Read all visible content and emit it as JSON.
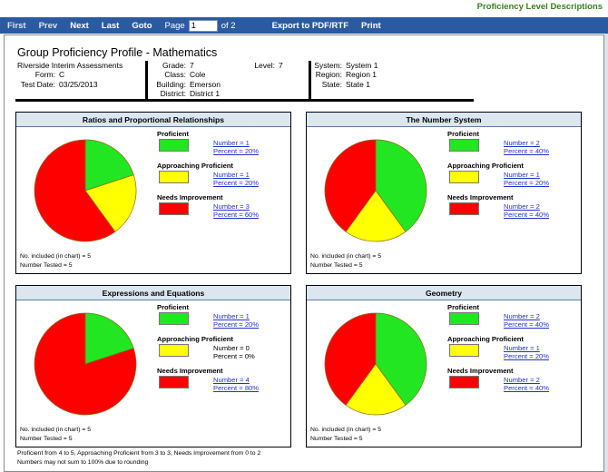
{
  "header_link": "Proficiency Level Descriptions",
  "toolbar": {
    "first": "First",
    "prev": "Prev",
    "next": "Next",
    "last": "Last",
    "goto": "Goto",
    "page_label": "Page",
    "page_value": "1",
    "of": "of 2",
    "export": "Export to PDF/RTF",
    "print": "Print"
  },
  "report": {
    "title": "Group Proficiency Profile - Mathematics",
    "assessment": "Riverside Interim Assessments",
    "form_label": "Form:",
    "form": "C",
    "test_date_label": "Test Date:",
    "test_date": "03/25/2013",
    "grade_label": "Grade:",
    "grade": "7",
    "class_label": "Class:",
    "class": "Cole",
    "building_label": "Building:",
    "building": "Emerson",
    "district_label": "District:",
    "district": "District 1",
    "level_label": "Level:",
    "level": "7",
    "system_label": "System:",
    "system": "System 1",
    "region_label": "Region:",
    "region": "Region 1",
    "state_label": "State:",
    "state": "State 1"
  },
  "colors": {
    "proficient": "#22e622",
    "approaching": "#ffff00",
    "needs": "#ff0000",
    "toolbar": "#2c5aa0",
    "panel_header": "#dbe6f1"
  },
  "legend_labels": {
    "proficient": "Proficient",
    "approaching": "Approaching Proficient",
    "needs": "Needs Improvement"
  },
  "chart_data": [
    {
      "type": "pie",
      "title": "Ratios and Proportional Relationships",
      "categories": [
        "Proficient",
        "Approaching Proficient",
        "Needs Improvement"
      ],
      "numbers": [
        "Number = 1",
        "Number = 1",
        "Number = 3"
      ],
      "percents": [
        "Percent = 20%",
        "Percent = 20%",
        "Percent = 60%"
      ],
      "values": [
        1,
        1,
        3
      ],
      "footer_included": "No. included (in chart) = 5",
      "footer_tested": "Number Tested = 5"
    },
    {
      "type": "pie",
      "title": "The Number System",
      "categories": [
        "Proficient",
        "Approaching Proficient",
        "Needs Improvement"
      ],
      "numbers": [
        "Number = 2",
        "Number = 1",
        "Number = 2"
      ],
      "percents": [
        "Percent = 40%",
        "Percent = 20%",
        "Percent = 40%"
      ],
      "values": [
        2,
        1,
        2
      ],
      "footer_included": "No. included (in chart) = 5",
      "footer_tested": "Number Tested = 5"
    },
    {
      "type": "pie",
      "title": "Expressions and Equations",
      "categories": [
        "Proficient",
        "Approaching Proficient",
        "Needs Improvement"
      ],
      "numbers": [
        "Number = 1",
        "Number = 0",
        "Number = 4"
      ],
      "percents": [
        "Percent = 20%",
        "Percent = 0%",
        "Percent = 80%"
      ],
      "values": [
        1,
        0,
        4
      ],
      "footer_included": "No. included (in chart) = 5",
      "footer_tested": "Number Tested = 5"
    },
    {
      "type": "pie",
      "title": "Geometry",
      "categories": [
        "Proficient",
        "Approaching Proficient",
        "Needs Improvement"
      ],
      "numbers": [
        "Number = 2",
        "Number = 1",
        "Number = 2"
      ],
      "percents": [
        "Percent = 40%",
        "Percent = 20%",
        "Percent = 40%"
      ],
      "values": [
        2,
        1,
        2
      ],
      "footer_included": "No. included (in chart) = 5",
      "footer_tested": "Number Tested = 5"
    }
  ],
  "notes": {
    "line1": "Proficient from 4 to 5, Approaching Proficient from 3 to 3, Needs Improvement from 0 to 2",
    "line2": "Numbers may not sum to 100% due to rounding"
  }
}
